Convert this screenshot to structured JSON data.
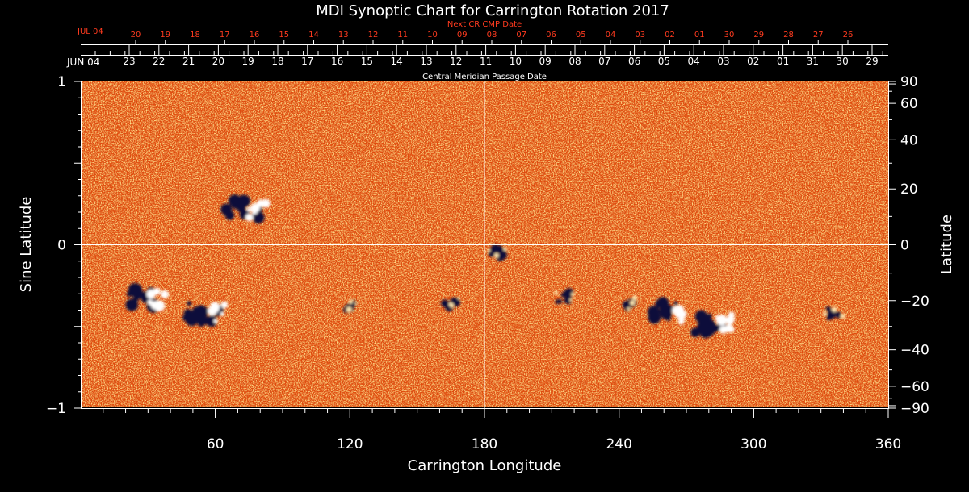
{
  "chart_data": {
    "type": "heatmap",
    "title": "MDI Synoptic Chart for Carrington Rotation 2017",
    "xlabel": "Carrington Longitude",
    "ylabel_left": "Sine Latitude",
    "ylabel_right": "Latitude",
    "xlim": [
      0,
      360
    ],
    "ylim": [
      -1,
      1
    ],
    "x_ticks": [
      "60",
      "120",
      "180",
      "240",
      "300",
      "360"
    ],
    "x_tick_values": [
      60,
      120,
      180,
      240,
      300,
      360
    ],
    "y_left_ticks": [
      {
        "value": 1,
        "label": "1"
      },
      {
        "value": 0,
        "label": "0"
      },
      {
        "value": -1,
        "label": "−1"
      }
    ],
    "y_right_ticks": [
      {
        "deg": 90,
        "label": "90"
      },
      {
        "deg": 60,
        "label": "60"
      },
      {
        "deg": 40,
        "label": "40"
      },
      {
        "deg": 20,
        "label": "20"
      },
      {
        "deg": 0,
        "label": "0"
      },
      {
        "deg": -20,
        "label": "−20"
      },
      {
        "deg": -40,
        "label": "−40"
      },
      {
        "deg": -60,
        "label": "−60"
      },
      {
        "deg": -90,
        "label": "−90"
      }
    ],
    "cmp_axis_label": "Central Meridian Passage Date",
    "cmp_start_label": "JUN 04",
    "cmp_dates": [
      "23",
      "22",
      "21",
      "20",
      "19",
      "18",
      "17",
      "16",
      "15",
      "14",
      "13",
      "12",
      "11",
      "10",
      "09",
      "08",
      "07",
      "06",
      "05",
      "04",
      "03",
      "02",
      "01",
      "31",
      "30",
      "29"
    ],
    "next_cr_label": "Next CR CMP Date",
    "next_cr_start_label": "JUL 04",
    "next_cr_dates": [
      "20",
      "19",
      "18",
      "17",
      "16",
      "15",
      "14",
      "13",
      "12",
      "11",
      "10",
      "09",
      "08",
      "07",
      "06",
      "05",
      "04",
      "03",
      "02",
      "01",
      "30",
      "29",
      "28",
      "27",
      "26"
    ],
    "grid": "crosshair at longitude 180 and latitude 0",
    "colors": {
      "background": "#000000",
      "map_base": "#e04a0c",
      "positive_polarity": "#ffffff",
      "negative_polarity": "#0b0b3a",
      "next_cr_text": "#ff3b1f"
    },
    "active_regions": [
      {
        "lon": 75,
        "sinlat": 0.22,
        "polarity": "bipolar"
      },
      {
        "lon": 57,
        "sinlat": -0.42,
        "polarity": "bipolar"
      },
      {
        "lon": 30,
        "sinlat": -0.32,
        "polarity": "bipolar"
      },
      {
        "lon": 120,
        "sinlat": -0.38,
        "polarity": "negative"
      },
      {
        "lon": 165,
        "sinlat": -0.36,
        "polarity": "negative"
      },
      {
        "lon": 186,
        "sinlat": -0.05,
        "polarity": "negative"
      },
      {
        "lon": 262,
        "sinlat": -0.42,
        "polarity": "bipolar"
      },
      {
        "lon": 284,
        "sinlat": -0.48,
        "polarity": "bipolar"
      },
      {
        "lon": 336,
        "sinlat": -0.42,
        "polarity": "negative"
      },
      {
        "lon": 215,
        "sinlat": -0.32,
        "polarity": "negative"
      },
      {
        "lon": 245,
        "sinlat": -0.36,
        "polarity": "negative"
      }
    ]
  }
}
